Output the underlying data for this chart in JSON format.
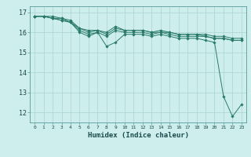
{
  "xlabel": "Humidex (Indice chaleur)",
  "ylabel": "",
  "bg_color": "#cdeeed",
  "grid_color": "#aad4d0",
  "line_color": "#2a7a6a",
  "xlim": [
    -0.5,
    23.5
  ],
  "ylim": [
    11.5,
    17.3
  ],
  "xticks": [
    0,
    1,
    2,
    3,
    4,
    5,
    6,
    7,
    8,
    9,
    10,
    11,
    12,
    13,
    14,
    15,
    16,
    17,
    18,
    19,
    20,
    21,
    22,
    23
  ],
  "yticks": [
    12,
    13,
    14,
    15,
    16,
    17
  ],
  "series": [
    [
      16.8,
      16.8,
      16.7,
      16.6,
      16.5,
      16.0,
      15.8,
      16.0,
      15.3,
      15.5,
      15.9,
      15.9,
      15.9,
      15.8,
      15.9,
      15.8,
      15.7,
      15.7,
      15.7,
      15.6,
      15.5,
      12.8,
      11.8,
      12.4
    ],
    [
      16.8,
      16.8,
      16.7,
      16.6,
      16.5,
      16.1,
      15.9,
      16.0,
      15.8,
      16.1,
      16.0,
      16.0,
      16.0,
      15.9,
      16.0,
      15.9,
      15.8,
      15.8,
      15.8,
      15.8,
      15.7,
      15.7,
      15.6,
      15.6
    ],
    [
      16.8,
      16.8,
      16.7,
      16.7,
      16.5,
      16.2,
      16.0,
      16.1,
      15.9,
      16.2,
      16.1,
      16.1,
      16.1,
      16.0,
      16.0,
      16.0,
      15.9,
      15.9,
      15.9,
      15.8,
      15.7,
      15.7,
      15.6,
      15.6
    ],
    [
      16.8,
      16.8,
      16.8,
      16.7,
      16.6,
      16.2,
      16.1,
      16.1,
      16.0,
      16.3,
      16.1,
      16.1,
      16.1,
      16.0,
      16.1,
      16.0,
      15.9,
      15.9,
      15.9,
      15.9,
      15.8,
      15.8,
      15.7,
      15.7
    ]
  ]
}
